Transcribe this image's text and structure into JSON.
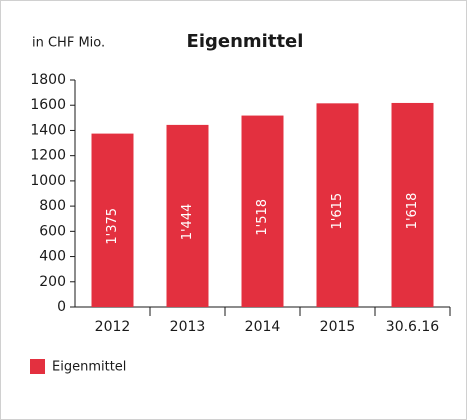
{
  "chart_data": {
    "type": "bar",
    "title": "Eigenmittel",
    "y_label": "in CHF Mio.",
    "categories": [
      "2012",
      "2013",
      "2014",
      "2015",
      "30.6.16"
    ],
    "series": [
      {
        "name": "Eigenmittel",
        "color": "#e3303f",
        "values": [
          1375,
          1444,
          1518,
          1615,
          1618
        ],
        "value_labels": [
          "1'375",
          "1'444",
          "1'518",
          "1'615",
          "1'618"
        ]
      }
    ],
    "ylim": [
      0,
      1800
    ],
    "yticks": [
      0,
      200,
      400,
      600,
      800,
      1000,
      1200,
      1400,
      1600,
      1800
    ],
    "legend": "bottom-left"
  }
}
